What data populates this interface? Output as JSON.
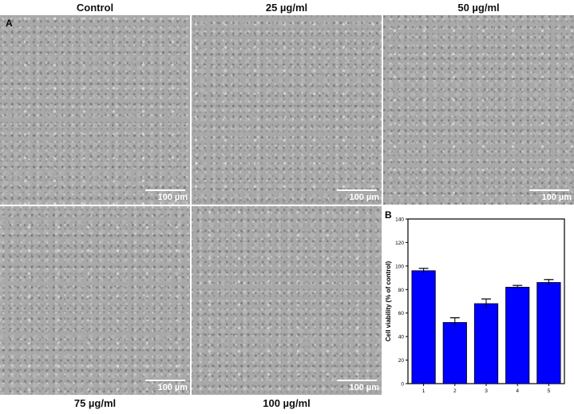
{
  "panels": {
    "A": "A",
    "B": "B"
  },
  "images": [
    {
      "label": "Control",
      "scale": "100 µm"
    },
    {
      "label": "25 µg/ml",
      "scale": "100 µm"
    },
    {
      "label": "50 µg/ml",
      "scale": "100 µm"
    },
    {
      "label": "75 µg/ml",
      "scale": "100 µm"
    },
    {
      "label": "100 µg/ml",
      "scale": "100 µm"
    }
  ],
  "chart_data": {
    "type": "bar",
    "categories": [
      "1",
      "2",
      "3",
      "4",
      "5"
    ],
    "values": [
      96,
      52,
      68,
      82,
      86
    ],
    "errors": [
      2,
      4,
      4,
      1.5,
      2.5
    ],
    "ylabel": "Cell viability (% of control)",
    "xlabel": "",
    "ylim": [
      0,
      140
    ],
    "yticks": [
      "0",
      "20",
      "40",
      "60",
      "80",
      "100",
      "120",
      "140"
    ],
    "bar_color": "#0000ff",
    "grid": false
  }
}
